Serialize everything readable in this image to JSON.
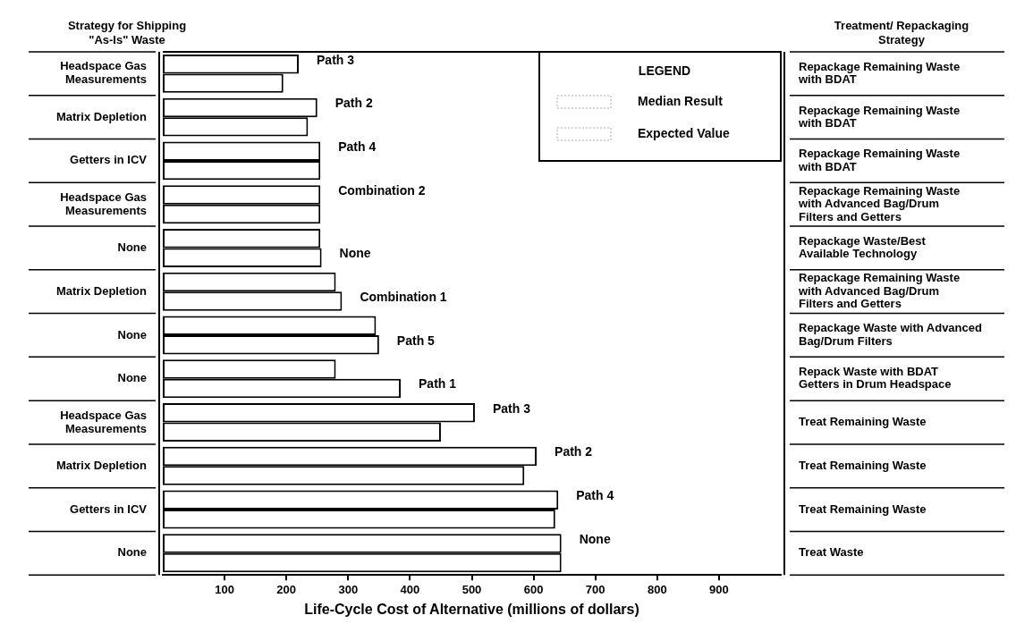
{
  "chart_data": {
    "type": "bar",
    "orientation": "horizontal",
    "ylabel": "Strategy for Shipping \"As-Is\" Waste",
    "y2label": "Treatment/ Repackaging Strategy",
    "xlabel": "Life-Cycle Cost of Alternative (millions of dollars)",
    "categories": [
      "Headspace Gas Measurements",
      "Matrix Depletion",
      "Getters in ICV",
      "Headspace Gas Measurements",
      "None",
      "Matrix Depletion",
      "None",
      "None",
      "Headspace Gas Measurements",
      "Matrix Depletion",
      "Getters in ICV",
      "None"
    ],
    "y2_categories": [
      "Repackage Remaining Waste with BDAT",
      "Repackage Remaining Waste with BDAT",
      "Repackage Remaining Waste with BDAT",
      "Repackage Remaining Waste with Advanced Bag/Drum Filters and Getters",
      "Repackage Waste/Best Available Technology",
      "Repackage Remaining Waste with Advanced Bag/Drum Filters and Getters",
      "Repackage Waste with Advanced Bag/Drum Filters",
      "Repack Waste with BDAT Getters in Drum Headspace",
      "Treat Remaining Waste",
      "Treat Remaining Waste",
      "Treat Remaining Waste",
      "Treat Waste"
    ],
    "series": [
      {
        "name": "Median Result",
        "color": "#ffffff",
        "values": [
          220,
          250,
          255,
          255,
          255,
          280,
          345,
          280,
          505,
          605,
          640,
          645
        ]
      },
      {
        "name": "Expected Value",
        "color": "#ffffff",
        "values": [
          195,
          235,
          255,
          255,
          257,
          290,
          350,
          385,
          450,
          585,
          635,
          645
        ]
      }
    ],
    "annotations": [
      "Path 3",
      "Path 2",
      "Path 4",
      "Combination 2",
      "None",
      "Combination 1",
      "Path 5",
      "Path 1",
      "Path 3",
      "Path 2",
      "Path 4",
      "None"
    ],
    "xlim": [
      0,
      1000
    ],
    "xticks": [
      100,
      200,
      300,
      400,
      500,
      600,
      700,
      800,
      900
    ],
    "legend": "top right",
    "legend_title": "LEGEND"
  }
}
